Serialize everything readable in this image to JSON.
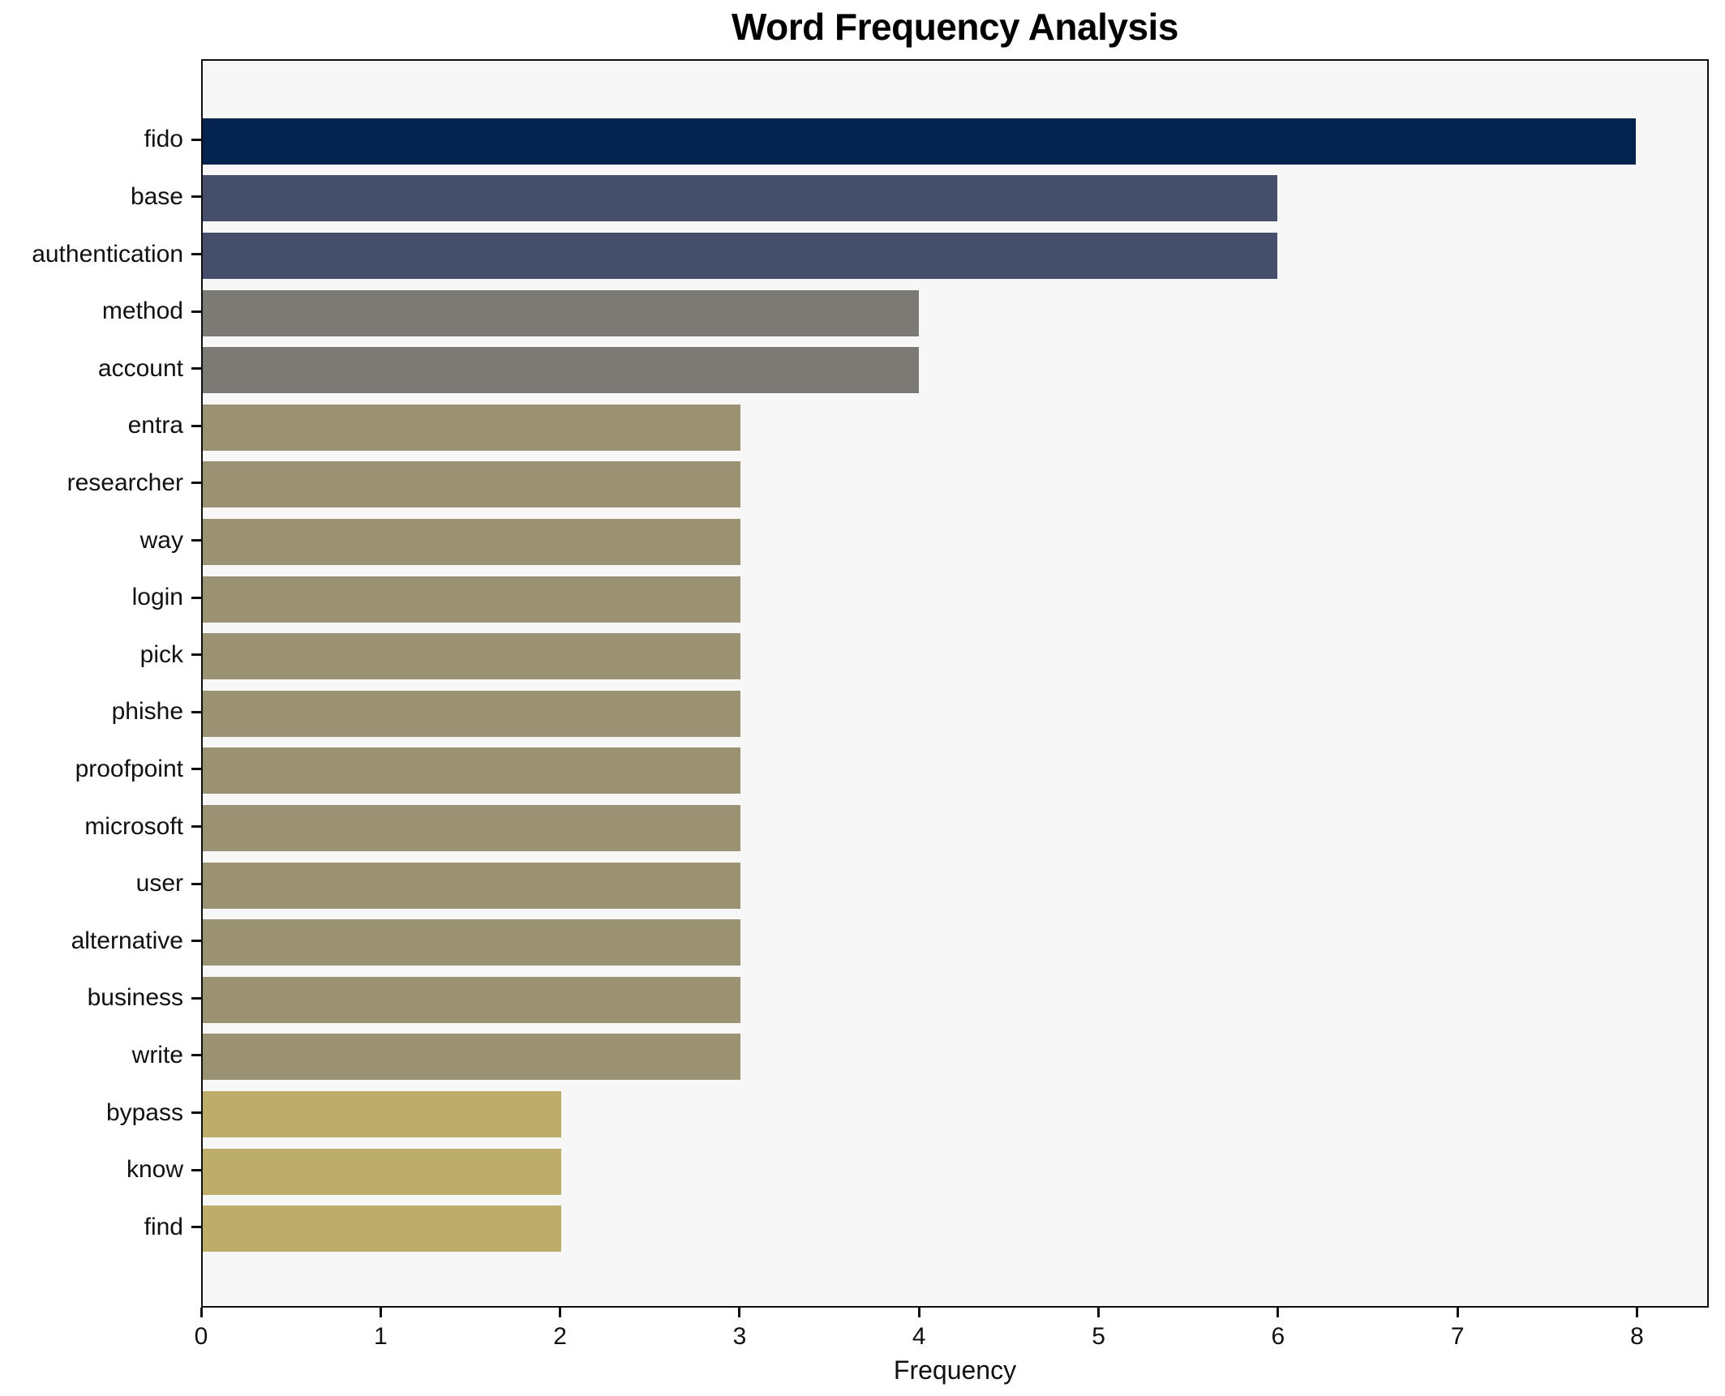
{
  "chart_data": {
    "type": "bar",
    "orientation": "horizontal",
    "title": "Word Frequency Analysis",
    "xlabel": "Frequency",
    "ylabel": "",
    "categories": [
      "fido",
      "base",
      "authentication",
      "method",
      "account",
      "entra",
      "researcher",
      "way",
      "login",
      "pick",
      "phishe",
      "proofpoint",
      "microsoft",
      "user",
      "alternative",
      "business",
      "write",
      "bypass",
      "know",
      "find"
    ],
    "values": [
      8,
      6,
      6,
      4,
      4,
      3,
      3,
      3,
      3,
      3,
      3,
      3,
      3,
      3,
      3,
      3,
      3,
      2,
      2,
      2
    ],
    "bar_colors": [
      "#03234e",
      "#454f6b",
      "#454f6b",
      "#7b7a75",
      "#7b7a75",
      "#9a9272",
      "#9a9272",
      "#9a9272",
      "#9a9272",
      "#9a9272",
      "#9a9272",
      "#9a9272",
      "#9a9272",
      "#9a9272",
      "#9a9272",
      "#9a9272",
      "#9a9272",
      "#bcad6b",
      "#bcad6b",
      "#bcad6b"
    ],
    "xticks": [
      0,
      1,
      2,
      3,
      4,
      5,
      6,
      7,
      8
    ],
    "xlim": [
      0,
      8.4
    ],
    "grid": false,
    "legend_position": "none",
    "plot_background": "#f7f7f8",
    "figure_background": "#ffffff",
    "spine_color": "#0f0f0f"
  }
}
